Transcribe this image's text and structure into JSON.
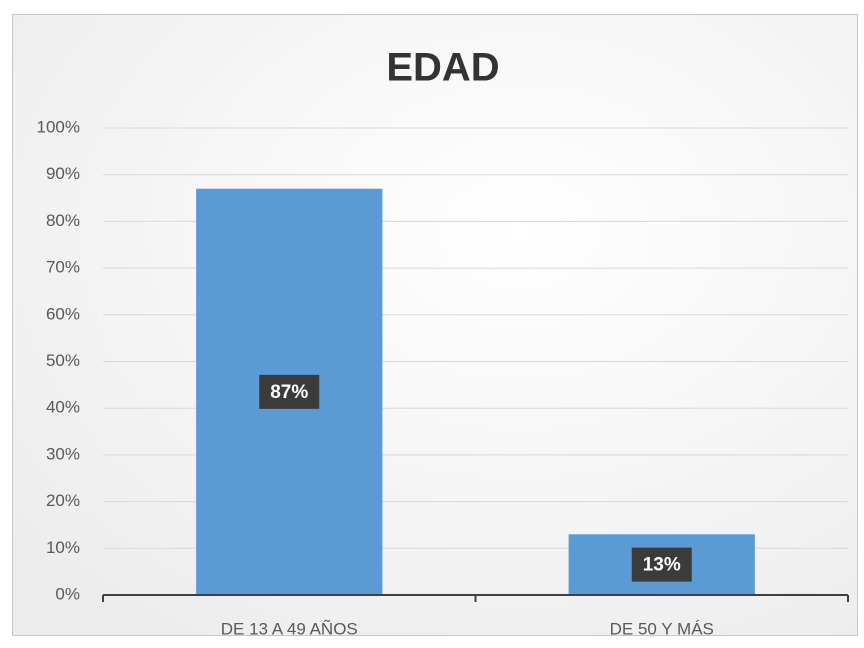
{
  "chart_data": {
    "type": "bar",
    "title": "EDAD",
    "categories": [
      "DE 13 A 49 AÑOS",
      "DE 50  Y MÁS"
    ],
    "values": [
      87,
      13
    ],
    "value_labels": [
      "87%",
      "13%"
    ],
    "color": "#5b9bd5",
    "ylim": [
      0,
      100
    ],
    "yticks": [
      {
        "value": 0,
        "label": "0%"
      },
      {
        "value": 10,
        "label": "10%"
      },
      {
        "value": 20,
        "label": "20%"
      },
      {
        "value": 30,
        "label": "30%"
      },
      {
        "value": 40,
        "label": "40%"
      },
      {
        "value": 50,
        "label": "50%"
      },
      {
        "value": 60,
        "label": "60%"
      },
      {
        "value": 70,
        "label": "70%"
      },
      {
        "value": 80,
        "label": "80%"
      },
      {
        "value": 90,
        "label": "90%"
      },
      {
        "value": 100,
        "label": "100%"
      }
    ],
    "grid": true
  }
}
